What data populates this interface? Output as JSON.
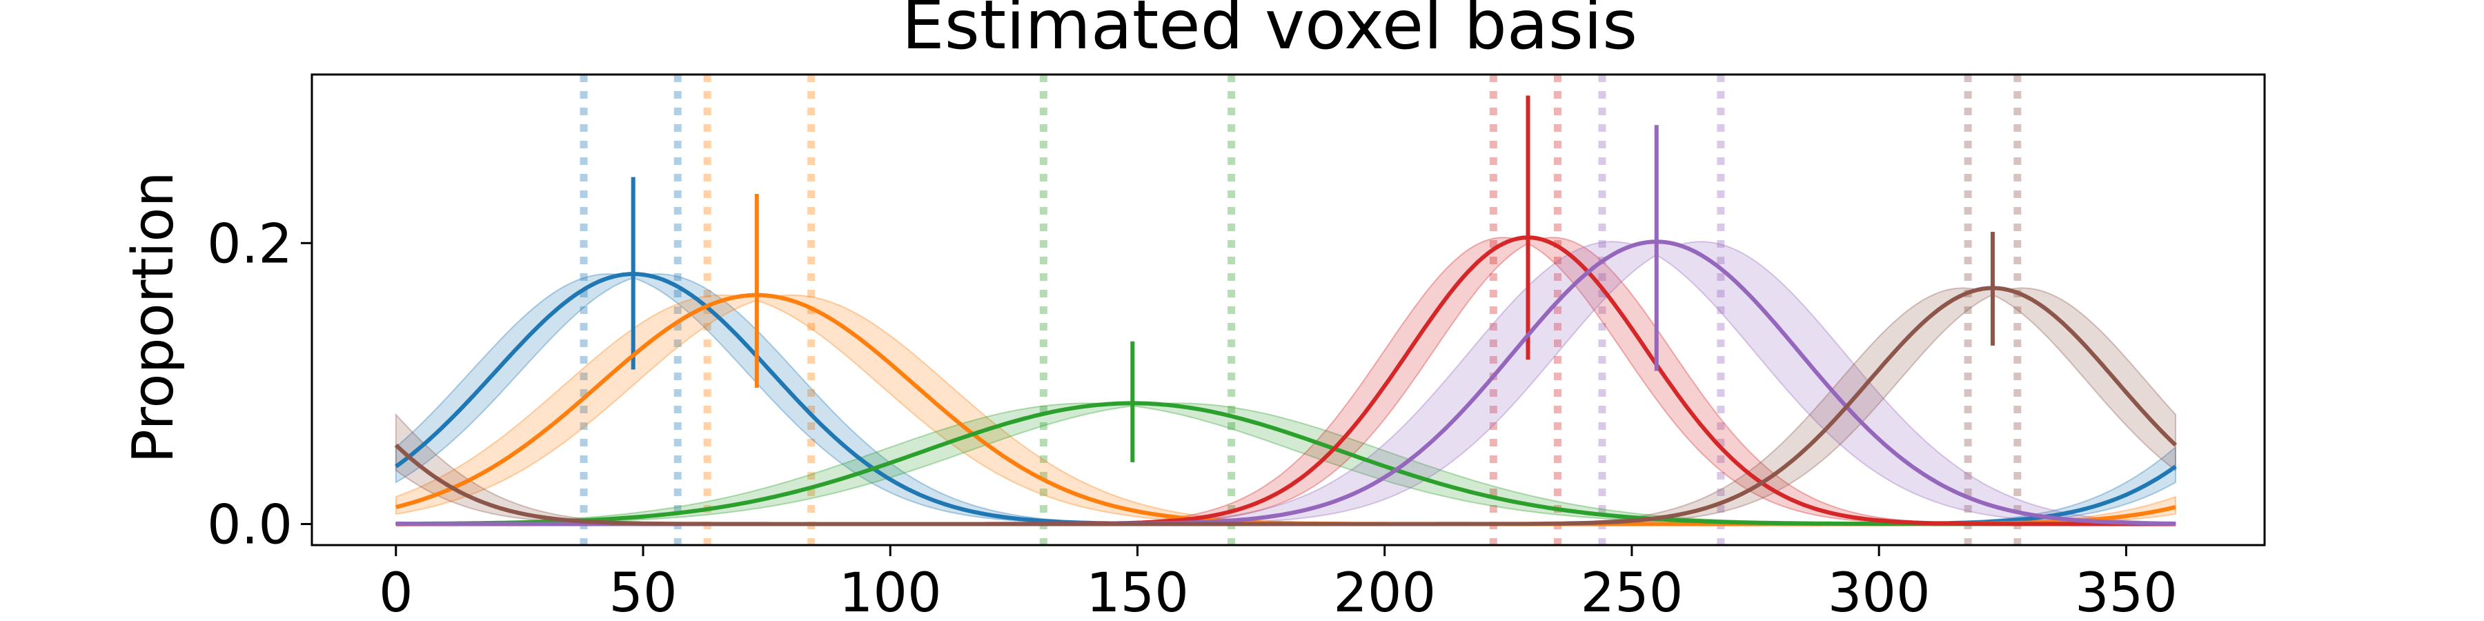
{
  "chart_data": {
    "type": "line",
    "title": "Estimated voxel basis",
    "xlabel": "",
    "ylabel": "Proportion",
    "xlim": [
      -17,
      378
    ],
    "ylim": [
      -0.015,
      0.32
    ],
    "x_ticks": [
      0,
      50,
      100,
      150,
      200,
      250,
      300,
      350
    ],
    "x_tick_labels": [
      "0",
      "50",
      "100",
      "150",
      "200",
      "250",
      "300",
      "350"
    ],
    "y_ticks": [
      0.0,
      0.2
    ],
    "y_tick_labels": [
      "0.0",
      "0.2"
    ],
    "grid": false,
    "legend": "none",
    "series": [
      {
        "color": "#1f77b4",
        "center": 48,
        "peak": 0.178,
        "width_deg": 28,
        "band_half_width_deg": 5,
        "err_low": 0.11,
        "err_high": 0.247,
        "dotted_lines": [
          38,
          57
        ]
      },
      {
        "color": "#ff7f0e",
        "center": 73,
        "peak": 0.163,
        "width_deg": 32,
        "band_half_width_deg": 7,
        "err_low": 0.097,
        "err_high": 0.235,
        "dotted_lines": [
          63,
          84
        ]
      },
      {
        "color": "#2ca02c",
        "center": 149,
        "peak": 0.086,
        "width_deg": 42,
        "band_half_width_deg": 9,
        "err_low": 0.044,
        "err_high": 0.13,
        "dotted_lines": [
          131,
          169
        ]
      },
      {
        "color": "#d62728",
        "center": 229,
        "peak": 0.204,
        "width_deg": 24,
        "band_half_width_deg": 5,
        "err_low": 0.117,
        "err_high": 0.305,
        "dotted_lines": [
          222,
          235
        ]
      },
      {
        "color": "#9467bd",
        "center": 255,
        "peak": 0.201,
        "width_deg": 29,
        "band_half_width_deg": 9,
        "err_low": 0.109,
        "err_high": 0.284,
        "dotted_lines": [
          244,
          268
        ]
      },
      {
        "color": "#8c564b",
        "center": 323,
        "peak": 0.168,
        "width_deg": 25,
        "band_half_width_deg": 6,
        "err_low": 0.127,
        "err_high": 0.208,
        "dotted_lines": [
          318,
          328
        ]
      }
    ]
  }
}
